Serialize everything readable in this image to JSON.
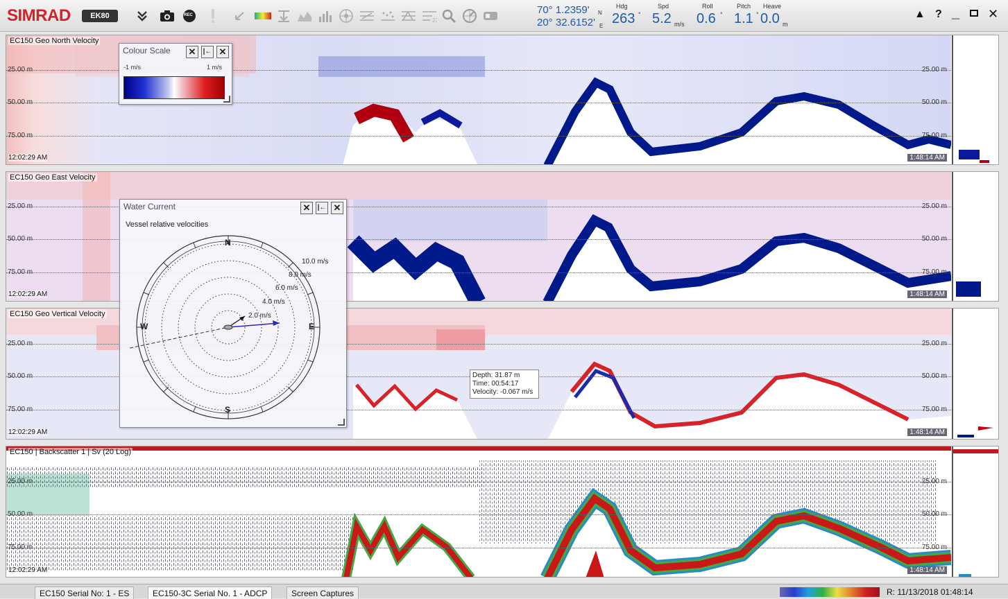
{
  "app": {
    "brand": "SIMRAD",
    "product": "EK80"
  },
  "toolbar": {
    "icons": [
      "chevron-double-down-icon",
      "camera-icon",
      "record-icon",
      "alert-bar-icon",
      "undo-icon",
      "color-scale-icon",
      "depth-icon",
      "echogram-icon",
      "bars-icon",
      "target-icon",
      "filter1-icon",
      "filter2-icon",
      "filter3-icon",
      "filter4-icon",
      "magnifier-icon",
      "compass-icon",
      "toggle-icon"
    ],
    "rec_label": "REC"
  },
  "nav": {
    "lat": "70° 1.2359'",
    "lat_hem": "N",
    "lon": "20° 32.6152'",
    "lon_hem": "E",
    "hdg_label": "Hdg",
    "hdg": "263",
    "hdg_unit": "°",
    "spd_label": "Spd",
    "spd": "5.2",
    "spd_unit": "m/s",
    "roll_label": "Roll",
    "roll": "0.6",
    "roll_unit": "°",
    "pitch_label": "Pitch",
    "pitch": "1.1",
    "pitch_unit": "°",
    "heave_label": "Heave",
    "heave": "0.0",
    "heave_unit": "m"
  },
  "window_controls": {
    "warning": "▲",
    "help": "?",
    "minimize": "_",
    "restore": "▫",
    "close": "✕"
  },
  "panels": [
    {
      "title": "EC150  Geo North  Velocity",
      "depths": [
        "25.00 m",
        "50.00 m",
        "75.00 m"
      ],
      "time_left": "12:02:29 AM",
      "time_right": "1:48:14 AM"
    },
    {
      "title": "EC150  Geo East  Velocity",
      "depths": [
        "25.00 m",
        "50.00 m",
        "75.00 m"
      ],
      "time_left": "12:02:29 AM",
      "time_right": "1:48:14 AM"
    },
    {
      "title": "EC150  Geo Vertical  Velocity",
      "depths": [
        "25.00 m",
        "50.00 m",
        "75.00 m"
      ],
      "time_left": "12:02:29 AM",
      "time_right": "1:48:14 AM"
    },
    {
      "title": "EC150 | Backscatter 1 | Sv (20 Log)",
      "depths": [
        "25.00 m",
        "50.00 m",
        "75.00 m"
      ],
      "time_left": "12:02:29 AM",
      "time_right": "1:48:14 AM"
    }
  ],
  "colour_scale": {
    "title": "Colour Scale",
    "min": "-1 m/s",
    "max": "1 m/s",
    "colors": [
      "#00008b",
      "#ffffff",
      "#b40000"
    ]
  },
  "water_current": {
    "title": "Water Current",
    "subtitle": "Vessel relative velocities",
    "north": "N",
    "south": "S",
    "east": "E",
    "west": "W",
    "rings": [
      "2.0 m/s",
      "4.0 m/s",
      "6.0 m/s",
      "8.0 m/s",
      "10.0 m/s"
    ]
  },
  "tooltip": {
    "depth": "Depth: 31.87 m",
    "time": "Time: 00:54:17",
    "velocity": "Velocity: -0.067 m/s"
  },
  "status": {
    "tabs": [
      "EC150 Serial No: 1 - ES",
      "EC150-3C Serial No. 1 - ADCP",
      "Screen Captures"
    ],
    "replay": "R: 11/13/2018  01:48:14"
  }
}
